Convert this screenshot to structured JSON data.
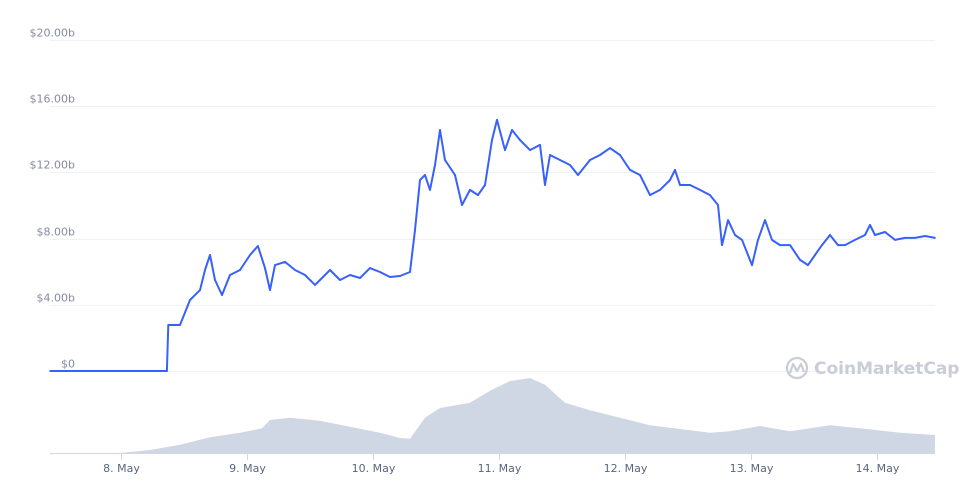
{
  "chart_data": {
    "type": "line",
    "title": "",
    "xlabel": "",
    "ylabel": "",
    "ylim": [
      0,
      20
    ],
    "grid": true,
    "legend": "none",
    "watermark": "CoinMarketCap",
    "y_ticks": [
      {
        "value": 0,
        "label": "$0"
      },
      {
        "value": 4,
        "label": "$4.00b"
      },
      {
        "value": 8,
        "label": "$8.00b"
      },
      {
        "value": 12,
        "label": "$12.00b"
      },
      {
        "value": 16,
        "label": "$16.00b"
      },
      {
        "value": 20,
        "label": "$20.00b"
      }
    ],
    "x_ticks": [
      {
        "date": "8 May 00:00",
        "label": "8. May"
      },
      {
        "date": "9 May 00:00",
        "label": "9. May"
      },
      {
        "date": "10 May 00:00",
        "label": "10. May"
      },
      {
        "date": "11 May 00:00",
        "label": "11. May"
      },
      {
        "date": "12 May 00:00",
        "label": "12. May"
      },
      {
        "date": "13 May 00:00",
        "label": "13. May"
      },
      {
        "date": "14 May 00:00",
        "label": "14. May"
      }
    ],
    "colors": {
      "line": "#3861fb",
      "volume": "#cfd6e4",
      "grid": "#eff2f5"
    },
    "series": [
      {
        "unit": "$b",
        "points": [
          [
            "7 May 10:30",
            0
          ],
          [
            "8 May 08:45",
            0
          ],
          [
            "8 May 09:00",
            2.78
          ],
          [
            "8 May 11:14",
            2.78
          ],
          [
            "8 May 13:09",
            4.29
          ],
          [
            "8 May 15:03",
            4.89
          ],
          [
            "8 May 16:00",
            6.1
          ],
          [
            "8 May 16:57",
            7.01
          ],
          [
            "8 May 17:54",
            5.5
          ],
          [
            "8 May 19:14",
            4.59
          ],
          [
            "8 May 20:46",
            5.8
          ],
          [
            "8 May 22:40",
            6.1
          ],
          [
            "9 May 00:34",
            7.01
          ],
          [
            "9 May 02:05",
            7.55
          ],
          [
            "9 May 03:26",
            6.22
          ],
          [
            "9 May 04:23",
            4.89
          ],
          [
            "9 May 05:20",
            6.4
          ],
          [
            "9 May 07:14",
            6.59
          ],
          [
            "9 May 09:09",
            6.1
          ],
          [
            "9 May 11:03",
            5.8
          ],
          [
            "9 May 12:57",
            5.2
          ],
          [
            "9 May 13:54",
            5.5
          ],
          [
            "9 May 15:49",
            6.1
          ],
          [
            "9 May 17:43",
            5.5
          ],
          [
            "9 May 19:37",
            5.8
          ],
          [
            "9 May 21:31",
            5.62
          ],
          [
            "9 May 23:26",
            6.22
          ],
          [
            "10 May 01:20",
            5.98
          ],
          [
            "10 May 03:14",
            5.68
          ],
          [
            "10 May 05:09",
            5.74
          ],
          [
            "10 May 07:03",
            5.98
          ],
          [
            "10 May 08:00",
            8.52
          ],
          [
            "10 May 08:57",
            11.54
          ],
          [
            "10 May 09:54",
            11.84
          ],
          [
            "10 May 10:51",
            10.94
          ],
          [
            "10 May 11:49",
            12.45
          ],
          [
            "10 May 12:46",
            14.56
          ],
          [
            "10 May 13:43",
            12.75
          ],
          [
            "10 May 15:37",
            11.84
          ],
          [
            "10 May 16:57",
            10.03
          ],
          [
            "10 May 18:29",
            10.94
          ],
          [
            "10 May 20:00",
            10.63
          ],
          [
            "10 May 21:20",
            11.24
          ],
          [
            "10 May 22:40",
            13.96
          ],
          [
            "10 May 23:37",
            15.17
          ],
          [
            "11 May 01:09",
            13.35
          ],
          [
            "11 May 02:29",
            14.56
          ],
          [
            "11 May 04:00",
            13.96
          ],
          [
            "11 May 05:54",
            13.35
          ],
          [
            "11 May 07:49",
            13.66
          ],
          [
            "11 May 08:46",
            11.24
          ],
          [
            "11 May 09:43",
            13.05
          ],
          [
            "11 May 11:37",
            12.75
          ],
          [
            "11 May 13:31",
            12.45
          ],
          [
            "11 May 15:03",
            11.84
          ],
          [
            "11 May 17:20",
            12.75
          ],
          [
            "11 May 19:14",
            13.05
          ],
          [
            "11 May 21:09",
            13.47
          ],
          [
            "11 May 23:03",
            13.05
          ],
          [
            "12 May 00:57",
            12.15
          ],
          [
            "12 May 02:51",
            11.84
          ],
          [
            "12 May 04:46",
            10.63
          ],
          [
            "12 May 06:40",
            10.94
          ],
          [
            "12 May 08:34",
            11.54
          ],
          [
            "12 May 09:31",
            12.15
          ],
          [
            "12 May 10:29",
            11.24
          ],
          [
            "12 May 12:23",
            11.24
          ],
          [
            "12 May 14:17",
            10.94
          ],
          [
            "12 May 16:11",
            10.63
          ],
          [
            "12 May 17:43",
            10.03
          ],
          [
            "12 May 18:29",
            7.61
          ],
          [
            "12 May 19:37",
            9.12
          ],
          [
            "12 May 20:57",
            8.22
          ],
          [
            "12 May 22:17",
            7.92
          ],
          [
            "12 May 23:26",
            7.01
          ],
          [
            "13 May 00:11",
            6.4
          ],
          [
            "13 May 01:20",
            7.92
          ],
          [
            "13 May 02:40",
            9.12
          ],
          [
            "13 May 04:00",
            7.92
          ],
          [
            "13 May 05:31",
            7.61
          ],
          [
            "13 May 07:26",
            7.61
          ],
          [
            "13 May 09:20",
            6.71
          ],
          [
            "13 May 10:51",
            6.4
          ],
          [
            "13 May 12:11",
            7.01
          ],
          [
            "13 May 13:31",
            7.61
          ],
          [
            "13 May 15:03",
            8.22
          ],
          [
            "13 May 16:34",
            7.61
          ],
          [
            "13 May 17:54",
            7.61
          ],
          [
            "13 May 19:49",
            7.92
          ],
          [
            "13 May 21:43",
            8.22
          ],
          [
            "13 May 22:40",
            8.82
          ],
          [
            "13 May 23:37",
            8.22
          ],
          [
            "14 May 01:31",
            8.4
          ],
          [
            "14 May 03:26",
            7.92
          ],
          [
            "14 May 05:20",
            8.04
          ],
          [
            "14 May 07:14",
            8.04
          ],
          [
            "14 May 09:09",
            8.16
          ],
          [
            "14 May 11:03",
            8.04
          ]
        ]
      }
    ],
    "volume_relative": [
      [
        "7 May 10:30",
        0
      ],
      [
        "7 May 23:49",
        0
      ],
      [
        "8 May 05:31",
        0.04
      ],
      [
        "8 May 11:14",
        0.11
      ],
      [
        "8 May 16:57",
        0.21
      ],
      [
        "8 May 22:40",
        0.27
      ],
      [
        "9 May 02:51",
        0.33
      ],
      [
        "9 May 04:23",
        0.44
      ],
      [
        "9 May 08:11",
        0.47
      ],
      [
        "9 May 13:54",
        0.43
      ],
      [
        "9 May 19:37",
        0.35
      ],
      [
        "10 May 01:20",
        0.27
      ],
      [
        "10 May 05:09",
        0.2
      ],
      [
        "10 May 07:03",
        0.19
      ],
      [
        "10 May 09:54",
        0.47
      ],
      [
        "10 May 12:46",
        0.6
      ],
      [
        "10 May 18:29",
        0.67
      ],
      [
        "10 May 22:17",
        0.83
      ],
      [
        "11 May 02:06",
        0.96
      ],
      [
        "11 May 05:54",
        1.0
      ],
      [
        "11 May 08:46",
        0.91
      ],
      [
        "11 May 12:34",
        0.67
      ],
      [
        "11 May 17:20",
        0.57
      ],
      [
        "11 May 23:03",
        0.47
      ],
      [
        "12 May 04:46",
        0.37
      ],
      [
        "12 May 10:29",
        0.32
      ],
      [
        "12 May 16:11",
        0.27
      ],
      [
        "12 May 20:00",
        0.29
      ],
      [
        "13 May 01:43",
        0.36
      ],
      [
        "13 May 07:26",
        0.29
      ],
      [
        "13 May 15:03",
        0.37
      ],
      [
        "13 May 20:46",
        0.33
      ],
      [
        "14 May 04:23",
        0.27
      ],
      [
        "14 May 11:03",
        0.24
      ]
    ]
  }
}
